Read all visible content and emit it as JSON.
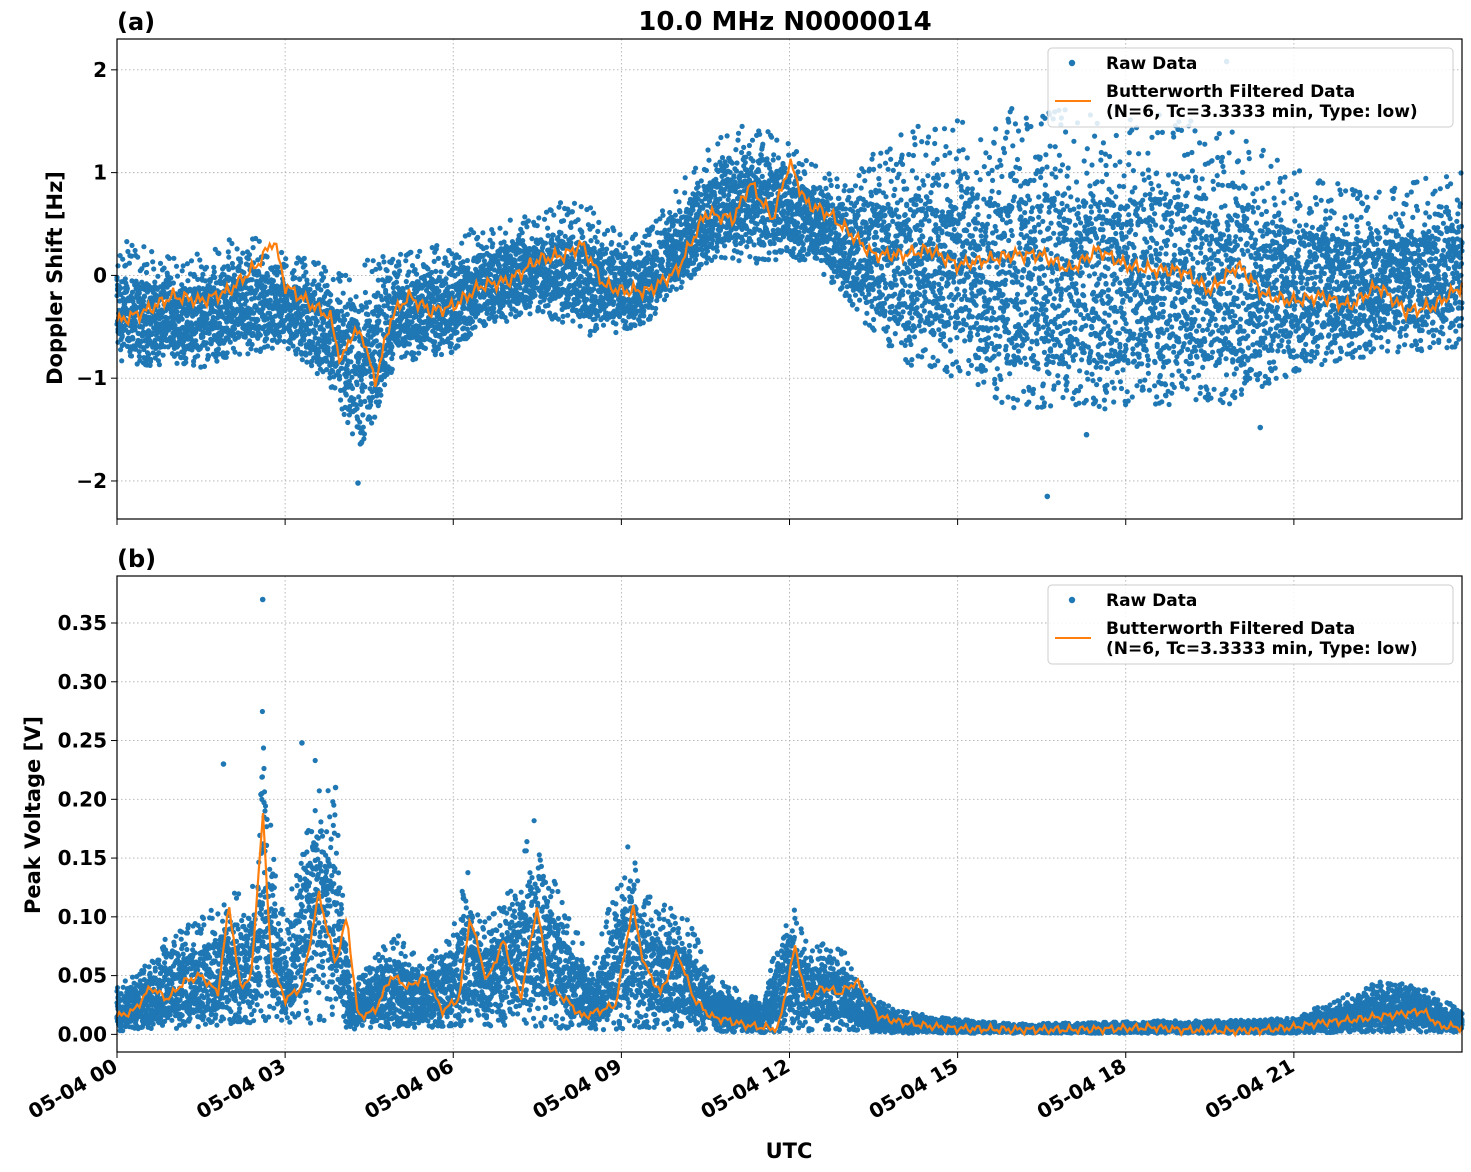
{
  "figure": {
    "title": "10.0 MHz N0000014",
    "xlabel": "UTC"
  },
  "colors": {
    "raw": "#1f77b4",
    "filtered": "#ff7f0e",
    "grid": "#b0b0b0"
  },
  "legend": {
    "raw_label": "Raw Data",
    "filtered_label_line1": "Butterworth Filtered Data",
    "filtered_label_line2": "(N=6, Tc=3.3333 min, Type: low)"
  },
  "chart_data": [
    {
      "type": "scatter",
      "panel_label": "(a)",
      "title": "10.0 MHz N0000014",
      "ylabel": "Doppler Shift [Hz]",
      "xlim": [
        "05-04 00:00",
        "05-05 00:00"
      ],
      "ylim": [
        -2.37,
        2.3
      ],
      "yticks": [
        -2,
        -1,
        0,
        1,
        2
      ],
      "ytick_labels": [
        "−2",
        "−1",
        "0",
        "1",
        "2"
      ],
      "grid": true,
      "legend_position": "top-right",
      "series": [
        {
          "name": "Raw Data",
          "style": "points",
          "band_x_hours": [
            0,
            0.5,
            1,
            1.5,
            2,
            2.5,
            3,
            3.5,
            4,
            4.3,
            4.6,
            5,
            5.5,
            6,
            6.5,
            7,
            7.5,
            8,
            8.5,
            9,
            9.5,
            10,
            10.5,
            11,
            11.5,
            12,
            12.5,
            13,
            13.5,
            14,
            15,
            16,
            17,
            18,
            19,
            20,
            21,
            22,
            23,
            24
          ],
          "band_low": [
            -0.85,
            -0.9,
            -0.85,
            -0.9,
            -0.8,
            -0.75,
            -0.7,
            -0.9,
            -1.3,
            -1.7,
            -1.4,
            -0.85,
            -0.8,
            -0.75,
            -0.5,
            -0.45,
            -0.35,
            -0.5,
            -0.6,
            -0.55,
            -0.45,
            -0.15,
            0.1,
            0.15,
            0.1,
            0.2,
            0.05,
            -0.2,
            -0.6,
            -0.85,
            -1.0,
            -1.3,
            -1.3,
            -1.3,
            -1.25,
            -1.25,
            -0.95,
            -0.85,
            -0.75,
            -0.7
          ],
          "band_high": [
            0.35,
            0.3,
            0.2,
            0.25,
            0.35,
            0.4,
            0.2,
            0.15,
            0.05,
            0.1,
            0.2,
            0.2,
            0.3,
            0.35,
            0.5,
            0.6,
            0.55,
            0.75,
            0.65,
            0.4,
            0.45,
            0.85,
            1.25,
            1.45,
            1.45,
            1.3,
            1.05,
            0.9,
            1.2,
            1.45,
            1.55,
            1.65,
            1.7,
            1.65,
            1.55,
            1.4,
            1.05,
            0.85,
            0.9,
            1.05
          ],
          "outliers": [
            [
              4.3,
              -2.02
            ],
            [
              16.6,
              -2.15
            ],
            [
              19.8,
              2.08
            ],
            [
              17.3,
              -1.55
            ],
            [
              20.4,
              -1.48
            ],
            [
              14.6,
              1.42
            ]
          ]
        },
        {
          "name": "Butterworth Filtered Data\n(N=6, Tc=3.3333 min, Type: low)",
          "style": "line",
          "x_hours": [
            0,
            0.5,
            1,
            1.5,
            2,
            2.5,
            2.8,
            3,
            3.5,
            3.8,
            4.0,
            4.2,
            4.4,
            4.6,
            4.9,
            5.2,
            5.6,
            6,
            6.5,
            7,
            7.5,
            8,
            8.3,
            8.7,
            9,
            9.5,
            10,
            10.5,
            11,
            11.3,
            11.7,
            12,
            12.3,
            12.7,
            13,
            13.5,
            14,
            14.5,
            15,
            15.5,
            16,
            16.5,
            17,
            17.5,
            18,
            18.5,
            19,
            19.5,
            20,
            20.5,
            21,
            21.5,
            22,
            22.5,
            23,
            23.5,
            24
          ],
          "y": [
            -0.45,
            -0.35,
            -0.2,
            -0.25,
            -0.15,
            0.1,
            0.35,
            -0.1,
            -0.3,
            -0.4,
            -0.85,
            -0.55,
            -0.6,
            -1.05,
            -0.4,
            -0.2,
            -0.35,
            -0.3,
            -0.1,
            -0.05,
            0.15,
            0.2,
            0.3,
            -0.1,
            -0.15,
            -0.15,
            0.05,
            0.6,
            0.55,
            0.9,
            0.55,
            1.1,
            0.7,
            0.6,
            0.45,
            0.2,
            0.2,
            0.25,
            0.1,
            0.15,
            0.2,
            0.2,
            0.05,
            0.25,
            0.1,
            0.05,
            0.05,
            -0.15,
            0.1,
            -0.2,
            -0.25,
            -0.2,
            -0.3,
            -0.1,
            -0.35,
            -0.3,
            -0.1
          ]
        }
      ]
    },
    {
      "type": "scatter",
      "panel_label": "(b)",
      "ylabel": "Peak Voltage [V]",
      "xlabel": "UTC",
      "xlim": [
        "05-04 00:00",
        "05-05 00:00"
      ],
      "ylim": [
        -0.015,
        0.39
      ],
      "yticks": [
        0.0,
        0.05,
        0.1,
        0.15,
        0.2,
        0.25,
        0.3,
        0.35
      ],
      "ytick_labels": [
        "0.00",
        "0.05",
        "0.10",
        "0.15",
        "0.20",
        "0.25",
        "0.30",
        "0.35"
      ],
      "xticks_hours": [
        0,
        3,
        6,
        9,
        12,
        15,
        18,
        21
      ],
      "xtick_labels": [
        "05-04 00",
        "05-04 03",
        "05-04 06",
        "05-04 09",
        "05-04 12",
        "05-04 15",
        "05-04 18",
        "05-04 21"
      ],
      "grid": true,
      "legend_position": "top-right",
      "series": [
        {
          "name": "Raw Data",
          "style": "points",
          "band_x_hours": [
            0,
            0.5,
            1,
            1.5,
            2,
            2.5,
            2.6,
            2.7,
            3,
            3.5,
            3.9,
            4.2,
            4.5,
            5,
            5.5,
            6,
            6.2,
            6.5,
            7,
            7.5,
            8,
            8.5,
            9,
            9.2,
            9.5,
            10,
            10.3,
            10.6,
            11,
            11.5,
            12,
            12.2,
            12.5,
            13,
            13.5,
            14,
            15,
            16,
            17,
            18,
            19,
            20,
            21,
            21.5,
            22,
            22.5,
            23,
            23.5,
            24
          ],
          "band_low": [
            0.003,
            0.004,
            0.005,
            0.006,
            0.007,
            0.008,
            0.01,
            0.008,
            0.008,
            0.008,
            0.009,
            0.004,
            0.005,
            0.006,
            0.006,
            0.006,
            0.008,
            0.007,
            0.007,
            0.007,
            0.005,
            0.004,
            0.004,
            0.005,
            0.005,
            0.004,
            0.004,
            0.003,
            0.002,
            0.001,
            0.002,
            0.003,
            0.003,
            0.003,
            0.002,
            0.001,
            0.001,
            0.001,
            0.001,
            0.001,
            0.001,
            0.001,
            0.001,
            0.001,
            0.002,
            0.002,
            0.002,
            0.002,
            0.002
          ],
          "band_high": [
            0.04,
            0.06,
            0.09,
            0.1,
            0.12,
            0.14,
            0.37,
            0.2,
            0.09,
            0.24,
            0.2,
            0.04,
            0.06,
            0.09,
            0.06,
            0.09,
            0.15,
            0.1,
            0.13,
            0.19,
            0.11,
            0.06,
            0.15,
            0.17,
            0.12,
            0.11,
            0.09,
            0.05,
            0.04,
            0.03,
            0.12,
            0.09,
            0.08,
            0.07,
            0.03,
            0.02,
            0.013,
            0.009,
            0.01,
            0.011,
            0.012,
            0.012,
            0.014,
            0.025,
            0.035,
            0.045,
            0.05,
            0.035,
            0.02
          ],
          "outliers": [
            [
              2.6,
              0.37
            ],
            [
              3.3,
              0.248
            ],
            [
              1.9,
              0.23
            ],
            [
              3.9,
              0.21
            ]
          ]
        },
        {
          "name": "Butterworth Filtered Data\n(N=6, Tc=3.3333 min, Type: low)",
          "style": "line",
          "x_hours": [
            0,
            0.3,
            0.6,
            0.9,
            1.2,
            1.5,
            1.8,
            2.0,
            2.2,
            2.4,
            2.6,
            2.75,
            3.0,
            3.3,
            3.6,
            3.9,
            4.1,
            4.3,
            4.6,
            4.9,
            5.2,
            5.5,
            5.8,
            6.1,
            6.3,
            6.6,
            6.9,
            7.2,
            7.5,
            7.7,
            8.0,
            8.3,
            8.6,
            8.9,
            9.2,
            9.4,
            9.7,
            10.0,
            10.3,
            10.6,
            10.9,
            11.2,
            11.5,
            11.8,
            12.1,
            12.3,
            12.6,
            12.9,
            13.2,
            13.6,
            14.0,
            14.5,
            15,
            16,
            17,
            18,
            18.5,
            19,
            20,
            20.5,
            21,
            21.5,
            22,
            22.5,
            23,
            23.3,
            23.6,
            24
          ],
          "y": [
            0.015,
            0.02,
            0.04,
            0.03,
            0.045,
            0.05,
            0.035,
            0.11,
            0.04,
            0.05,
            0.19,
            0.06,
            0.03,
            0.04,
            0.12,
            0.06,
            0.1,
            0.015,
            0.02,
            0.05,
            0.04,
            0.05,
            0.02,
            0.03,
            0.1,
            0.045,
            0.08,
            0.03,
            0.11,
            0.04,
            0.03,
            0.015,
            0.02,
            0.025,
            0.11,
            0.06,
            0.035,
            0.07,
            0.03,
            0.015,
            0.012,
            0.008,
            0.006,
            0.005,
            0.075,
            0.03,
            0.04,
            0.035,
            0.045,
            0.015,
            0.01,
            0.007,
            0.005,
            0.004,
            0.004,
            0.005,
            0.006,
            0.004,
            0.003,
            0.004,
            0.006,
            0.01,
            0.012,
            0.015,
            0.018,
            0.02,
            0.007,
            0.006
          ]
        }
      ]
    }
  ]
}
